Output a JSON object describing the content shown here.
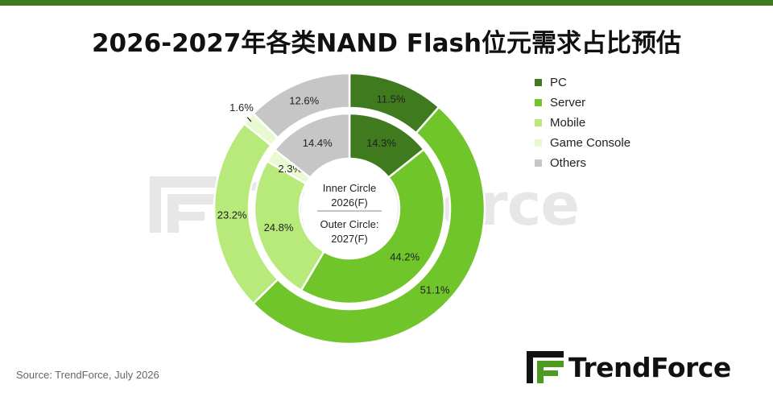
{
  "page": {
    "title": "2026-2027年各类NAND Flash位元需求占比预估",
    "source": "Source: TrendForce, July 2026",
    "logo_text": "TrendForce",
    "watermark_text": "TrendForce"
  },
  "colors": {
    "top_bar": "#3f7a1f",
    "PC": "#3f7a1f",
    "Server": "#6fc52a",
    "Mobile": "#b7ea7a",
    "Game Console": "#e9fad0",
    "Others": "#c6c6c6"
  },
  "chart_data": {
    "type": "donut",
    "center_labels": {
      "inner": [
        "Inner Circle",
        "2026(F)"
      ],
      "outer": [
        "Outer Circle:",
        "2027(F)"
      ]
    },
    "legend": [
      "PC",
      "Server",
      "Mobile",
      "Game Console",
      "Others"
    ],
    "legend_position": "right",
    "rings": [
      {
        "name": "2026(F)",
        "ring": "inner",
        "slices": [
          {
            "category": "PC",
            "value": 14.3,
            "label": "14.3%"
          },
          {
            "category": "Server",
            "value": 44.2,
            "label": "44.2%"
          },
          {
            "category": "Mobile",
            "value": 24.8,
            "label": "24.8%"
          },
          {
            "category": "Game Console",
            "value": 2.3,
            "label": "2.3%"
          },
          {
            "category": "Others",
            "value": 14.4,
            "label": "14.4%"
          }
        ]
      },
      {
        "name": "2027(F)",
        "ring": "outer",
        "slices": [
          {
            "category": "PC",
            "value": 11.5,
            "label": "11.5%"
          },
          {
            "category": "Server",
            "value": 51.1,
            "label": "51.1%"
          },
          {
            "category": "Mobile",
            "value": 23.2,
            "label": "23.2%"
          },
          {
            "category": "Game Console",
            "value": 1.6,
            "label": "1.6%"
          },
          {
            "category": "Others",
            "value": 12.6,
            "label": "12.6%"
          }
        ]
      }
    ]
  }
}
